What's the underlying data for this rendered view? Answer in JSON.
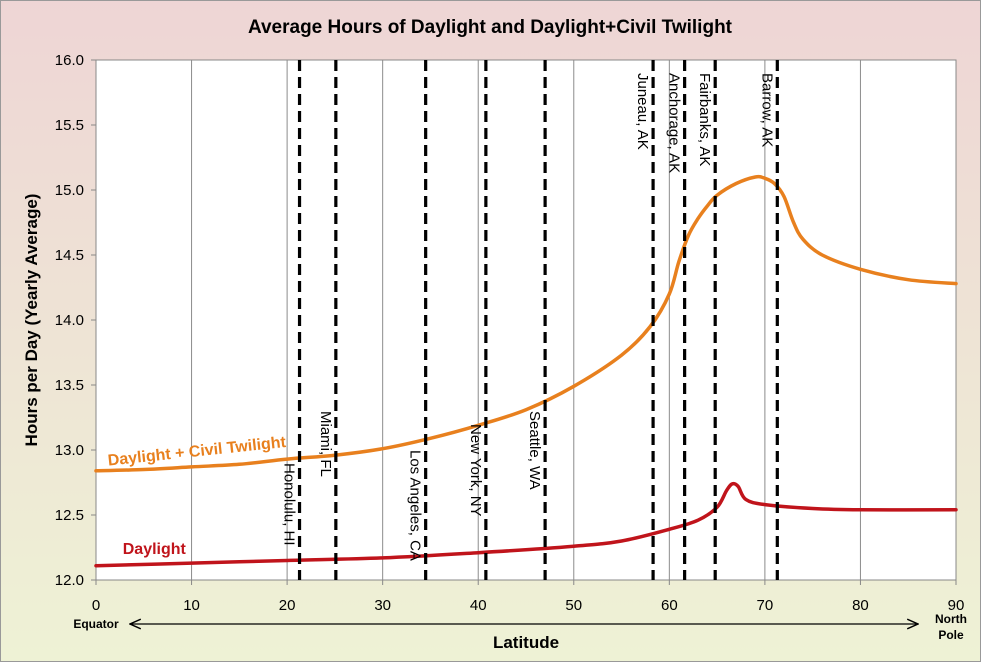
{
  "chart_data": {
    "type": "line",
    "title": "Average Hours of Daylight and Daylight+Civil Twilight",
    "xlabel": "Latitude",
    "ylabel": "Hours per Day (Yearly Average)",
    "xlim": [
      0,
      90
    ],
    "ylim": [
      12.0,
      16.0
    ],
    "x_ticks": [
      0,
      10,
      20,
      30,
      40,
      50,
      60,
      70,
      80,
      90
    ],
    "y_ticks": [
      "12.0",
      "12.5",
      "13.0",
      "13.5",
      "14.0",
      "14.5",
      "15.0",
      "15.5",
      "16.0"
    ],
    "x_end_labels": {
      "left": "Equator",
      "right_line1": "North",
      "right_line2": "Pole"
    },
    "gridlines": "vertical",
    "series": [
      {
        "name": "Daylight + Civil Twilight",
        "color": "#E8801E",
        "points": [
          [
            0,
            12.84
          ],
          [
            5,
            12.85
          ],
          [
            10,
            12.87
          ],
          [
            15,
            12.89
          ],
          [
            20,
            12.93
          ],
          [
            25,
            12.96
          ],
          [
            30,
            13.01
          ],
          [
            35,
            13.09
          ],
          [
            40,
            13.19
          ],
          [
            45,
            13.31
          ],
          [
            50,
            13.49
          ],
          [
            55,
            13.73
          ],
          [
            58,
            13.95
          ],
          [
            60,
            14.2
          ],
          [
            61,
            14.45
          ],
          [
            62,
            14.65
          ],
          [
            63,
            14.78
          ],
          [
            64,
            14.88
          ],
          [
            65,
            14.96
          ],
          [
            67,
            15.05
          ],
          [
            69,
            15.1
          ],
          [
            70,
            15.09
          ],
          [
            71,
            15.05
          ],
          [
            72,
            14.95
          ],
          [
            73,
            14.75
          ],
          [
            74,
            14.62
          ],
          [
            76,
            14.5
          ],
          [
            80,
            14.39
          ],
          [
            85,
            14.31
          ],
          [
            90,
            14.28
          ]
        ]
      },
      {
        "name": "Daylight",
        "color": "#C0141B",
        "points": [
          [
            0,
            12.11
          ],
          [
            10,
            12.13
          ],
          [
            20,
            12.15
          ],
          [
            30,
            12.17
          ],
          [
            40,
            12.21
          ],
          [
            50,
            12.26
          ],
          [
            55,
            12.3
          ],
          [
            60,
            12.39
          ],
          [
            63,
            12.46
          ],
          [
            65,
            12.56
          ],
          [
            66,
            12.69
          ],
          [
            66.6,
            12.74
          ],
          [
            67.2,
            12.72
          ],
          [
            68,
            12.62
          ],
          [
            70,
            12.58
          ],
          [
            75,
            12.55
          ],
          [
            80,
            12.54
          ],
          [
            90,
            12.54
          ]
        ]
      }
    ],
    "series_labels": [
      {
        "text": "Daylight + Civil Twilight",
        "x": 1.3,
        "y": 12.88,
        "rotate": -6,
        "color": "#E8801E"
      },
      {
        "text": "Daylight",
        "x": 2.8,
        "y": 12.2,
        "rotate": 0,
        "color": "#C0141B"
      }
    ],
    "markers": [
      {
        "label": "Honolulu, HI",
        "x": 21.3,
        "label_top": 12.9
      },
      {
        "label": "Miami, FL",
        "x": 25.1,
        "label_top": 13.3
      },
      {
        "label": "Los Angeles, CA",
        "x": 34.5,
        "label_top": 13.0
      },
      {
        "label": "New York, NY",
        "x": 40.8,
        "label_top": 13.2
      },
      {
        "label": "Seattle, WA",
        "x": 47.0,
        "label_top": 13.3
      },
      {
        "label": "Juneau, AK",
        "x": 58.3,
        "label_top": 15.9
      },
      {
        "label": "Anchorage, AK",
        "x": 61.6,
        "label_top": 15.9
      },
      {
        "label": "Fairbanks, AK",
        "x": 64.8,
        "label_top": 15.9
      },
      {
        "label": "Barrow, AK",
        "x": 71.3,
        "label_top": 15.9
      }
    ]
  }
}
